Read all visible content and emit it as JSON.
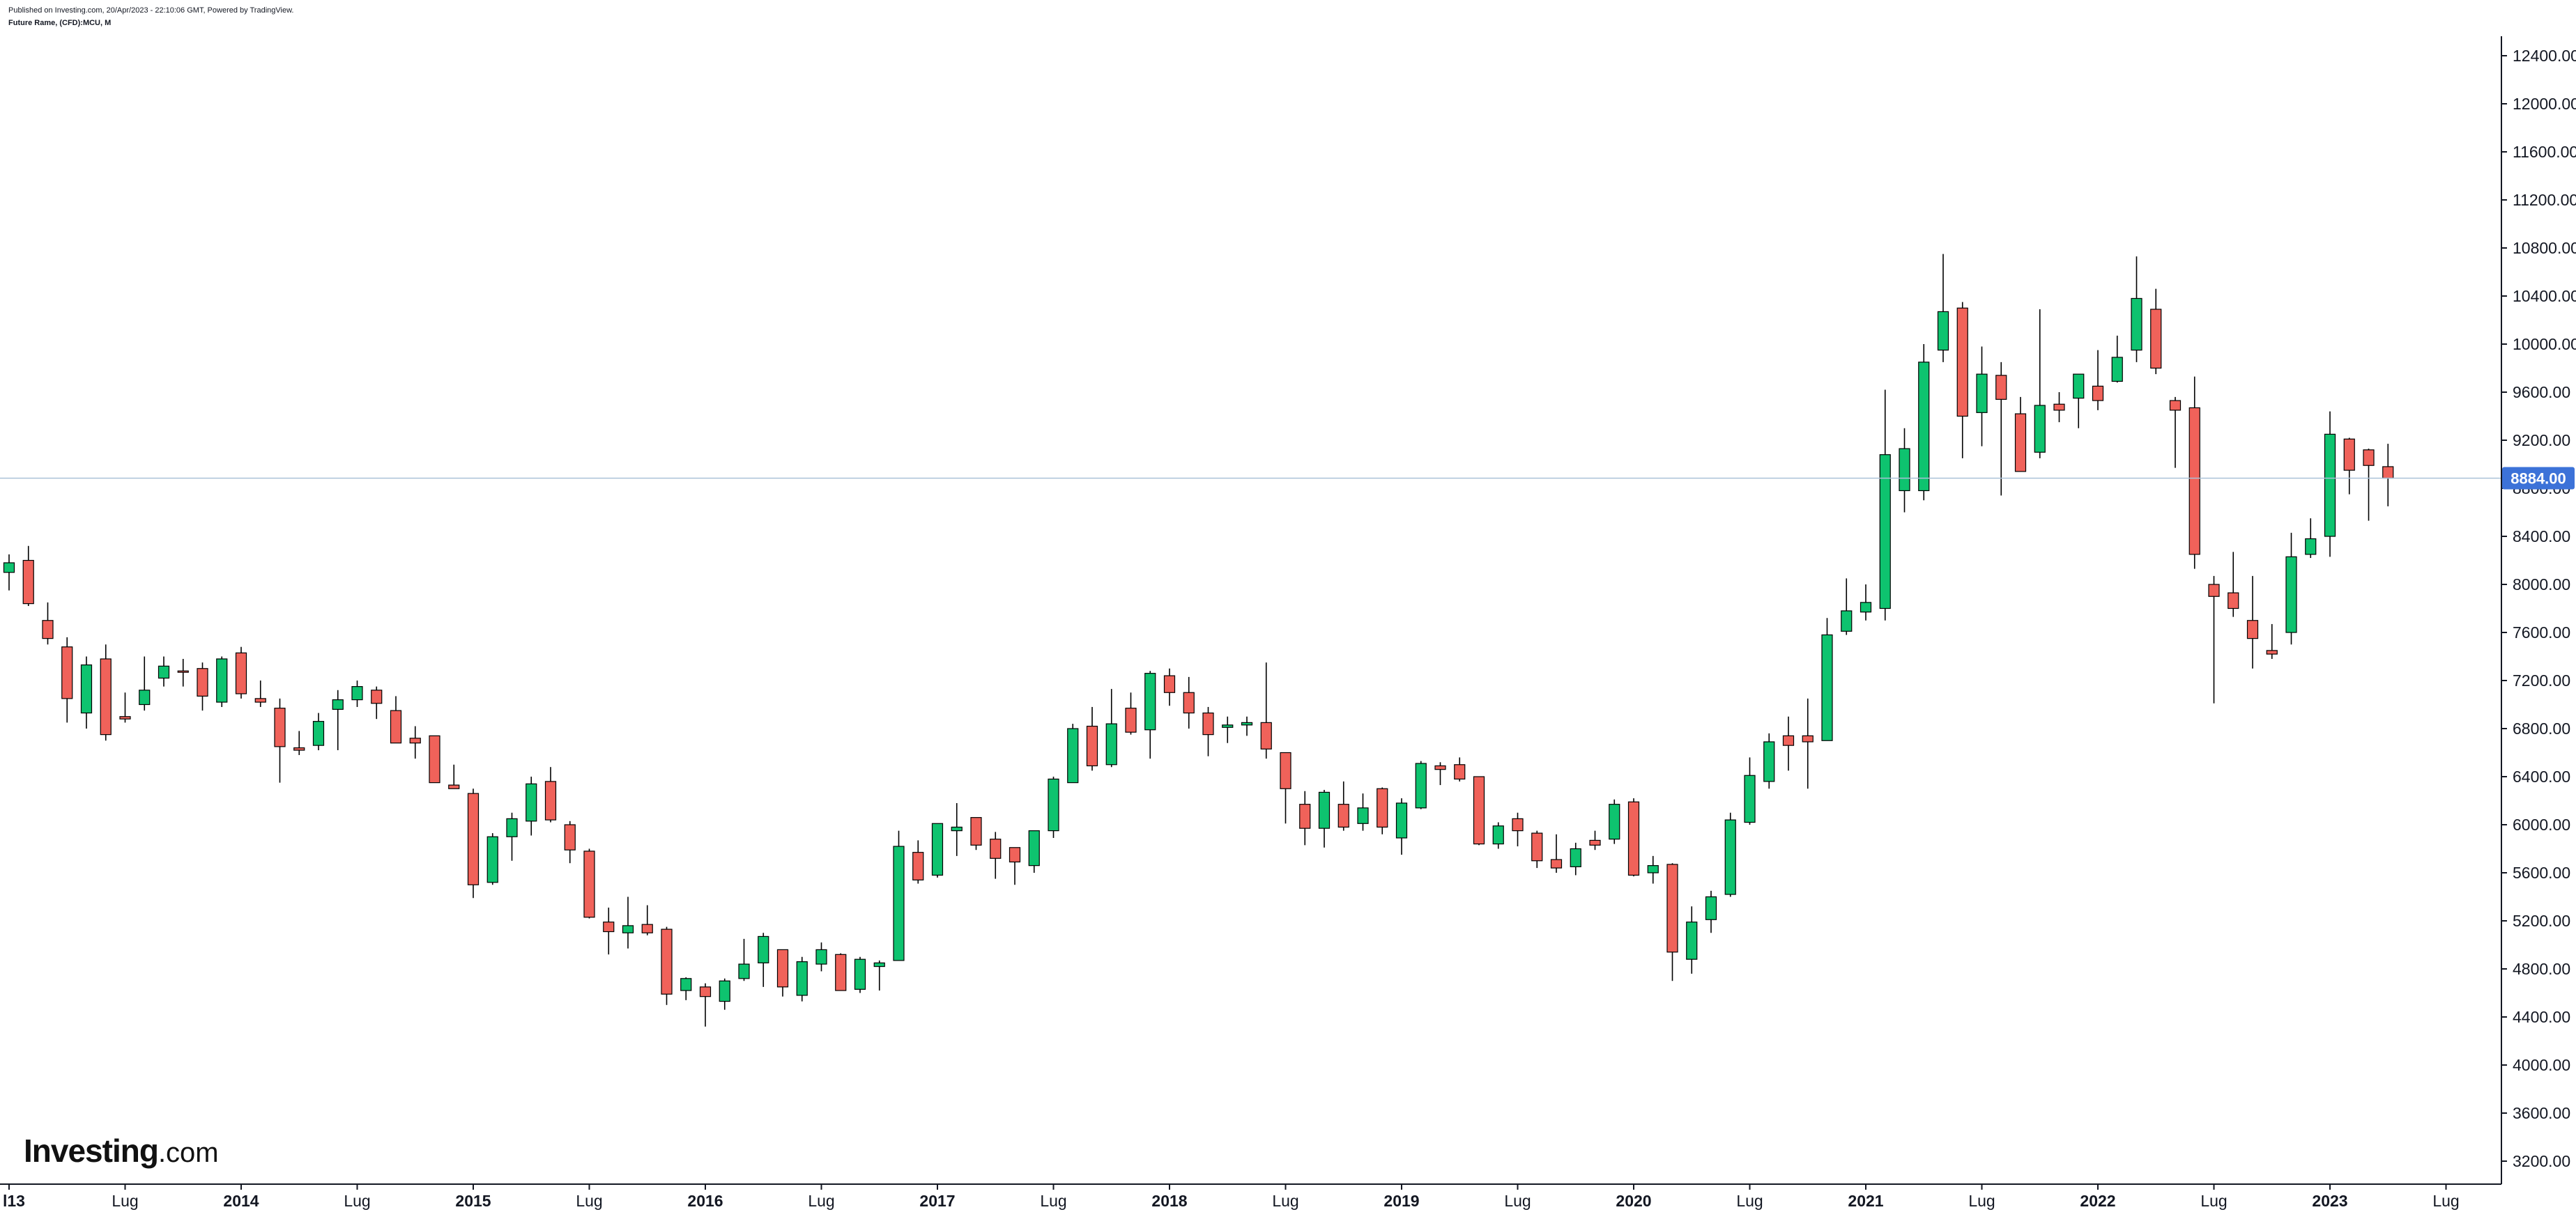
{
  "header": {
    "published": "Published on Investing.com, 20/Apr/2023 - 22:10:06 GMT, Powered by TradingView.",
    "instrument": "Future Rame, (CFD):MCU, M"
  },
  "logo": {
    "brand": "Investing",
    "suffix": ".com"
  },
  "colors": {
    "up": "#0ec36f",
    "down": "#f0625a",
    "last_price_label": "#3c72d8",
    "last_price_line": "#a9c1d8",
    "axis": "#131722"
  },
  "chart_data": {
    "type": "candlestick",
    "period": "monthly",
    "last_price": 8884.0,
    "last_price_label": "8884.00",
    "ylim": [
      3050,
      12600
    ],
    "y_ticks": [
      "3200.00",
      "3600.00",
      "4000.00",
      "4400.00",
      "4800.00",
      "5200.00",
      "5600.00",
      "6000.00",
      "6400.00",
      "6800.00",
      "7200.00",
      "7600.00",
      "8000.00",
      "8400.00",
      "8800.00",
      "9200.00",
      "9600.00",
      "10000.00",
      "10400.00",
      "10800.00",
      "11200.00",
      "11600.00",
      "12000.00",
      "12400.00"
    ],
    "x_ticks": [
      {
        "label": "l13",
        "index": 0,
        "bold": true
      },
      {
        "label": "Lug",
        "index": 6,
        "bold": false
      },
      {
        "label": "2014",
        "index": 12,
        "bold": true
      },
      {
        "label": "Lug",
        "index": 18,
        "bold": false
      },
      {
        "label": "2015",
        "index": 24,
        "bold": true
      },
      {
        "label": "Lug",
        "index": 30,
        "bold": false
      },
      {
        "label": "2016",
        "index": 36,
        "bold": true
      },
      {
        "label": "Lug",
        "index": 42,
        "bold": false
      },
      {
        "label": "2017",
        "index": 48,
        "bold": true
      },
      {
        "label": "Lug",
        "index": 54,
        "bold": false
      },
      {
        "label": "2018",
        "index": 60,
        "bold": true
      },
      {
        "label": "Lug",
        "index": 66,
        "bold": false
      },
      {
        "label": "2019",
        "index": 72,
        "bold": true
      },
      {
        "label": "Lug",
        "index": 78,
        "bold": false
      },
      {
        "label": "2020",
        "index": 84,
        "bold": true
      },
      {
        "label": "Lug",
        "index": 90,
        "bold": false
      },
      {
        "label": "2021",
        "index": 96,
        "bold": true
      },
      {
        "label": "Lug",
        "index": 102,
        "bold": false
      },
      {
        "label": "2022",
        "index": 108,
        "bold": true
      },
      {
        "label": "Lug",
        "index": 114,
        "bold": false
      },
      {
        "label": "2023",
        "index": 120,
        "bold": true
      },
      {
        "label": "Lug",
        "index": 126,
        "bold": false
      }
    ],
    "candles": [
      {
        "date": "2013-01",
        "open": 8100,
        "high": 8250,
        "low": 7950,
        "close": 8180
      },
      {
        "date": "2013-02",
        "open": 8200,
        "high": 8320,
        "low": 7820,
        "close": 7840
      },
      {
        "date": "2013-03",
        "open": 7700,
        "high": 7850,
        "low": 7500,
        "close": 7550
      },
      {
        "date": "2013-04",
        "open": 7480,
        "high": 7560,
        "low": 6850,
        "close": 7050
      },
      {
        "date": "2013-05",
        "open": 6930,
        "high": 7400,
        "low": 6800,
        "close": 7330
      },
      {
        "date": "2013-06",
        "open": 7380,
        "high": 7500,
        "low": 6700,
        "close": 6750
      },
      {
        "date": "2013-07",
        "open": 6900,
        "high": 7100,
        "low": 6850,
        "close": 6880
      },
      {
        "date": "2013-08",
        "open": 7000,
        "high": 7400,
        "low": 6950,
        "close": 7120
      },
      {
        "date": "2013-09",
        "open": 7220,
        "high": 7400,
        "low": 7150,
        "close": 7320
      },
      {
        "date": "2013-10",
        "open": 7280,
        "high": 7380,
        "low": 7150,
        "close": 7270
      },
      {
        "date": "2013-11",
        "open": 7300,
        "high": 7350,
        "low": 6950,
        "close": 7070
      },
      {
        "date": "2013-12",
        "open": 7020,
        "high": 7400,
        "low": 6980,
        "close": 7380
      },
      {
        "date": "2014-01",
        "open": 7430,
        "high": 7480,
        "low": 7050,
        "close": 7090
      },
      {
        "date": "2014-02",
        "open": 7050,
        "high": 7200,
        "low": 6980,
        "close": 7020
      },
      {
        "date": "2014-03",
        "open": 6970,
        "high": 7050,
        "low": 6350,
        "close": 6650
      },
      {
        "date": "2014-04",
        "open": 6640,
        "high": 6780,
        "low": 6580,
        "close": 6620
      },
      {
        "date": "2014-05",
        "open": 6660,
        "high": 6930,
        "low": 6620,
        "close": 6860
      },
      {
        "date": "2014-06",
        "open": 6960,
        "high": 7120,
        "low": 6620,
        "close": 7040
      },
      {
        "date": "2014-07",
        "open": 7040,
        "high": 7200,
        "low": 6980,
        "close": 7150
      },
      {
        "date": "2014-08",
        "open": 7120,
        "high": 7150,
        "low": 6880,
        "close": 7010
      },
      {
        "date": "2014-09",
        "open": 6950,
        "high": 7070,
        "low": 6680,
        "close": 6680
      },
      {
        "date": "2014-10",
        "open": 6720,
        "high": 6820,
        "low": 6550,
        "close": 6680
      },
      {
        "date": "2014-11",
        "open": 6740,
        "high": 6740,
        "low": 6350,
        "close": 6350
      },
      {
        "date": "2014-12",
        "open": 6330,
        "high": 6500,
        "low": 6300,
        "close": 6300
      },
      {
        "date": "2015-01",
        "open": 6260,
        "high": 6300,
        "low": 5390,
        "close": 5500
      },
      {
        "date": "2015-02",
        "open": 5520,
        "high": 5930,
        "low": 5500,
        "close": 5900
      },
      {
        "date": "2015-03",
        "open": 5900,
        "high": 6100,
        "low": 5700,
        "close": 6050
      },
      {
        "date": "2015-04",
        "open": 6030,
        "high": 6400,
        "low": 5910,
        "close": 6340
      },
      {
        "date": "2015-05",
        "open": 6360,
        "high": 6480,
        "low": 6020,
        "close": 6040
      },
      {
        "date": "2015-06",
        "open": 6000,
        "high": 6030,
        "low": 5680,
        "close": 5790
      },
      {
        "date": "2015-07",
        "open": 5780,
        "high": 5800,
        "low": 5220,
        "close": 5230
      },
      {
        "date": "2015-08",
        "open": 5190,
        "high": 5310,
        "low": 4920,
        "close": 5110
      },
      {
        "date": "2015-09",
        "open": 5100,
        "high": 5400,
        "low": 4970,
        "close": 5160
      },
      {
        "date": "2015-10",
        "open": 5170,
        "high": 5330,
        "low": 5080,
        "close": 5100
      },
      {
        "date": "2015-11",
        "open": 5130,
        "high": 5150,
        "low": 4500,
        "close": 4590
      },
      {
        "date": "2015-12",
        "open": 4620,
        "high": 4730,
        "low": 4540,
        "close": 4720
      },
      {
        "date": "2016-01",
        "open": 4650,
        "high": 4680,
        "low": 4320,
        "close": 4570
      },
      {
        "date": "2016-02",
        "open": 4530,
        "high": 4720,
        "low": 4460,
        "close": 4700
      },
      {
        "date": "2016-03",
        "open": 4720,
        "high": 5050,
        "low": 4700,
        "close": 4840
      },
      {
        "date": "2016-04",
        "open": 4850,
        "high": 5100,
        "low": 4650,
        "close": 5070
      },
      {
        "date": "2016-05",
        "open": 4960,
        "high": 4960,
        "low": 4570,
        "close": 4650
      },
      {
        "date": "2016-06",
        "open": 4580,
        "high": 4900,
        "low": 4530,
        "close": 4860
      },
      {
        "date": "2016-07",
        "open": 4840,
        "high": 5020,
        "low": 4780,
        "close": 4960
      },
      {
        "date": "2016-08",
        "open": 4920,
        "high": 4930,
        "low": 4620,
        "close": 4620
      },
      {
        "date": "2016-09",
        "open": 4630,
        "high": 4900,
        "low": 4600,
        "close": 4880
      },
      {
        "date": "2016-10",
        "open": 4820,
        "high": 4870,
        "low": 4620,
        "close": 4850
      },
      {
        "date": "2016-11",
        "open": 4870,
        "high": 5950,
        "low": 4870,
        "close": 5820
      },
      {
        "date": "2016-12",
        "open": 5770,
        "high": 5870,
        "low": 5510,
        "close": 5540
      },
      {
        "date": "2017-01",
        "open": 5580,
        "high": 6000,
        "low": 5560,
        "close": 6010
      },
      {
        "date": "2017-02",
        "open": 5950,
        "high": 6180,
        "low": 5740,
        "close": 5980
      },
      {
        "date": "2017-03",
        "open": 6060,
        "high": 6060,
        "low": 5790,
        "close": 5830
      },
      {
        "date": "2017-04",
        "open": 5880,
        "high": 5940,
        "low": 5550,
        "close": 5720
      },
      {
        "date": "2017-05",
        "open": 5810,
        "high": 5810,
        "low": 5500,
        "close": 5690
      },
      {
        "date": "2017-06",
        "open": 5660,
        "high": 5950,
        "low": 5600,
        "close": 5950
      },
      {
        "date": "2017-07",
        "open": 5950,
        "high": 6400,
        "low": 5890,
        "close": 6380
      },
      {
        "date": "2017-08",
        "open": 6350,
        "high": 6840,
        "low": 6350,
        "close": 6800
      },
      {
        "date": "2017-09",
        "open": 6820,
        "high": 6980,
        "low": 6450,
        "close": 6490
      },
      {
        "date": "2017-10",
        "open": 6500,
        "high": 7130,
        "low": 6480,
        "close": 6840
      },
      {
        "date": "2017-11",
        "open": 6970,
        "high": 7100,
        "low": 6750,
        "close": 6770
      },
      {
        "date": "2017-12",
        "open": 6790,
        "high": 7280,
        "low": 6550,
        "close": 7260
      },
      {
        "date": "2018-01",
        "open": 7240,
        "high": 7300,
        "low": 6990,
        "close": 7100
      },
      {
        "date": "2018-02",
        "open": 7100,
        "high": 7230,
        "low": 6800,
        "close": 6930
      },
      {
        "date": "2018-03",
        "open": 6930,
        "high": 6980,
        "low": 6570,
        "close": 6750
      },
      {
        "date": "2018-04",
        "open": 6810,
        "high": 6900,
        "low": 6680,
        "close": 6830
      },
      {
        "date": "2018-05",
        "open": 6830,
        "high": 6900,
        "low": 6740,
        "close": 6850
      },
      {
        "date": "2018-06",
        "open": 6850,
        "high": 7350,
        "low": 6550,
        "close": 6630
      },
      {
        "date": "2018-07",
        "open": 6600,
        "high": 6600,
        "low": 6010,
        "close": 6300
      },
      {
        "date": "2018-08",
        "open": 6170,
        "high": 6280,
        "low": 5830,
        "close": 5970
      },
      {
        "date": "2018-09",
        "open": 5970,
        "high": 6290,
        "low": 5810,
        "close": 6270
      },
      {
        "date": "2018-10",
        "open": 6170,
        "high": 6360,
        "low": 5950,
        "close": 5980
      },
      {
        "date": "2018-11",
        "open": 6010,
        "high": 6260,
        "low": 5950,
        "close": 6140
      },
      {
        "date": "2018-12",
        "open": 6300,
        "high": 6310,
        "low": 5920,
        "close": 5980
      },
      {
        "date": "2019-01",
        "open": 5890,
        "high": 6220,
        "low": 5750,
        "close": 6180
      },
      {
        "date": "2019-02",
        "open": 6140,
        "high": 6530,
        "low": 6130,
        "close": 6510
      },
      {
        "date": "2019-03",
        "open": 6490,
        "high": 6520,
        "low": 6330,
        "close": 6460
      },
      {
        "date": "2019-04",
        "open": 6500,
        "high": 6560,
        "low": 6360,
        "close": 6380
      },
      {
        "date": "2019-05",
        "open": 6400,
        "high": 6400,
        "low": 5830,
        "close": 5840
      },
      {
        "date": "2019-06",
        "open": 5840,
        "high": 6020,
        "low": 5800,
        "close": 5990
      },
      {
        "date": "2019-07",
        "open": 6050,
        "high": 6100,
        "low": 5820,
        "close": 5950
      },
      {
        "date": "2019-08",
        "open": 5930,
        "high": 5950,
        "low": 5640,
        "close": 5700
      },
      {
        "date": "2019-09",
        "open": 5710,
        "high": 5920,
        "low": 5600,
        "close": 5640
      },
      {
        "date": "2019-10",
        "open": 5650,
        "high": 5850,
        "low": 5580,
        "close": 5800
      },
      {
        "date": "2019-11",
        "open": 5870,
        "high": 5950,
        "low": 5790,
        "close": 5830
      },
      {
        "date": "2019-12",
        "open": 5880,
        "high": 6210,
        "low": 5840,
        "close": 6170
      },
      {
        "date": "2020-01",
        "open": 6190,
        "high": 6220,
        "low": 5570,
        "close": 5580
      },
      {
        "date": "2020-02",
        "open": 5600,
        "high": 5740,
        "low": 5510,
        "close": 5660
      },
      {
        "date": "2020-03",
        "open": 5670,
        "high": 5680,
        "low": 4700,
        "close": 4940
      },
      {
        "date": "2020-04",
        "open": 4880,
        "high": 5320,
        "low": 4760,
        "close": 5190
      },
      {
        "date": "2020-05",
        "open": 5210,
        "high": 5450,
        "low": 5100,
        "close": 5400
      },
      {
        "date": "2020-06",
        "open": 5420,
        "high": 6100,
        "low": 5400,
        "close": 6040
      },
      {
        "date": "2020-07",
        "open": 6020,
        "high": 6560,
        "low": 6000,
        "close": 6410
      },
      {
        "date": "2020-08",
        "open": 6360,
        "high": 6760,
        "low": 6300,
        "close": 6690
      },
      {
        "date": "2020-09",
        "open": 6740,
        "high": 6900,
        "low": 6450,
        "close": 6660
      },
      {
        "date": "2020-10",
        "open": 6740,
        "high": 7050,
        "low": 6300,
        "close": 6690
      },
      {
        "date": "2020-11",
        "open": 6700,
        "high": 7720,
        "low": 6700,
        "close": 7580
      },
      {
        "date": "2020-12",
        "open": 7610,
        "high": 8050,
        "low": 7580,
        "close": 7780
      },
      {
        "date": "2021-01",
        "open": 7770,
        "high": 8000,
        "low": 7700,
        "close": 7850
      },
      {
        "date": "2021-02",
        "open": 7800,
        "high": 9620,
        "low": 7700,
        "close": 9080
      },
      {
        "date": "2021-03",
        "open": 8780,
        "high": 9300,
        "low": 8600,
        "close": 9130
      },
      {
        "date": "2021-04",
        "open": 8780,
        "high": 10000,
        "low": 8700,
        "close": 9850
      },
      {
        "date": "2021-05",
        "open": 9950,
        "high": 10750,
        "low": 9850,
        "close": 10270
      },
      {
        "date": "2021-06",
        "open": 10300,
        "high": 10350,
        "low": 9050,
        "close": 9400
      },
      {
        "date": "2021-07",
        "open": 9430,
        "high": 9980,
        "low": 9150,
        "close": 9750
      },
      {
        "date": "2021-08",
        "open": 9740,
        "high": 9850,
        "low": 8740,
        "close": 9540
      },
      {
        "date": "2021-09",
        "open": 9420,
        "high": 9560,
        "low": 8950,
        "close": 8940
      },
      {
        "date": "2021-10",
        "open": 9100,
        "high": 10290,
        "low": 9050,
        "close": 9490
      },
      {
        "date": "2021-11",
        "open": 9500,
        "high": 9600,
        "low": 9350,
        "close": 9450
      },
      {
        "date": "2021-12",
        "open": 9550,
        "high": 9700,
        "low": 9300,
        "close": 9750
      },
      {
        "date": "2022-01",
        "open": 9650,
        "high": 9950,
        "low": 9450,
        "close": 9530
      },
      {
        "date": "2022-02",
        "open": 9690,
        "high": 10070,
        "low": 9680,
        "close": 9890
      },
      {
        "date": "2022-03",
        "open": 9950,
        "high": 10730,
        "low": 9850,
        "close": 10380
      },
      {
        "date": "2022-04",
        "open": 10290,
        "high": 10460,
        "low": 9750,
        "close": 9800
      },
      {
        "date": "2022-05",
        "open": 9530,
        "high": 9560,
        "low": 8970,
        "close": 9450
      },
      {
        "date": "2022-06",
        "open": 9470,
        "high": 9730,
        "low": 8130,
        "close": 8250
      },
      {
        "date": "2022-07",
        "open": 8000,
        "high": 8070,
        "low": 7010,
        "close": 7900
      },
      {
        "date": "2022-08",
        "open": 7930,
        "high": 8270,
        "low": 7730,
        "close": 7800
      },
      {
        "date": "2022-09",
        "open": 7700,
        "high": 8070,
        "low": 7300,
        "close": 7550
      },
      {
        "date": "2022-10",
        "open": 7450,
        "high": 7670,
        "low": 7380,
        "close": 7420
      },
      {
        "date": "2022-11",
        "open": 7600,
        "high": 8430,
        "low": 7500,
        "close": 8230
      },
      {
        "date": "2022-12",
        "open": 8250,
        "high": 8550,
        "low": 8220,
        "close": 8380
      },
      {
        "date": "2023-01",
        "open": 8400,
        "high": 9440,
        "low": 8230,
        "close": 9250
      },
      {
        "date": "2023-02",
        "open": 9210,
        "high": 9220,
        "low": 8750,
        "close": 8950
      },
      {
        "date": "2023-03",
        "open": 9120,
        "high": 9130,
        "low": 8530,
        "close": 8990
      },
      {
        "date": "2023-04",
        "open": 8980,
        "high": 9170,
        "low": 8650,
        "close": 8884
      }
    ]
  }
}
